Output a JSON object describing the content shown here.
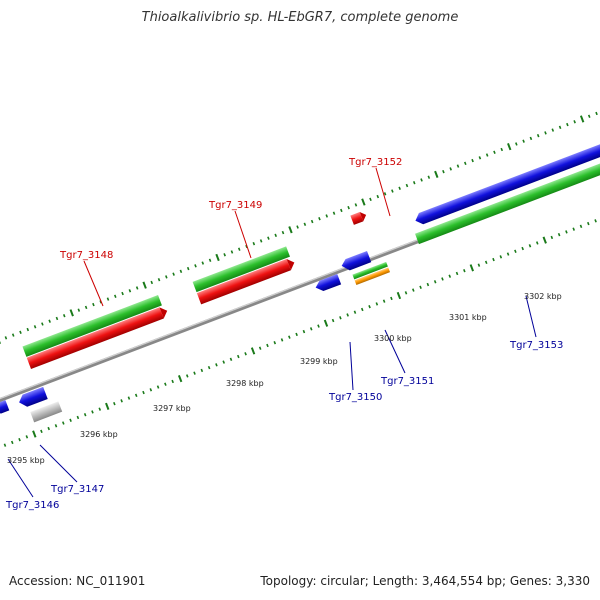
{
  "title": "Thioalkalivibrio sp. HL-EbGR7, complete genome",
  "footer": {
    "accession": "Accession: NC_011901",
    "summary": "Topology: circular; Length: 3,464,554 bp; Genes: 3,330"
  },
  "scale": {
    "ticks": [
      "3295 kbp",
      "3296 kbp",
      "3297 kbp",
      "3298 kbp",
      "3299 kbp",
      "3300 kbp",
      "3301 kbp",
      "3302 kbp"
    ]
  },
  "genes": {
    "top_labels": [
      "Tgr7_3148",
      "Tgr7_3149",
      "Tgr7_3152"
    ],
    "bottom_labels": [
      "Tgr7_3146",
      "Tgr7_3147",
      "Tgr7_3150",
      "Tgr7_3151",
      "Tgr7_3153"
    ]
  },
  "colors": {
    "gene_forward": "#2bbf2b",
    "cds_forward": "#ee1111",
    "gene_reverse": "#1111dd",
    "rna": "#ff9900",
    "pseudo": "#bbbbbb",
    "backbone": "#888888",
    "tick": "#1a7a1a"
  }
}
